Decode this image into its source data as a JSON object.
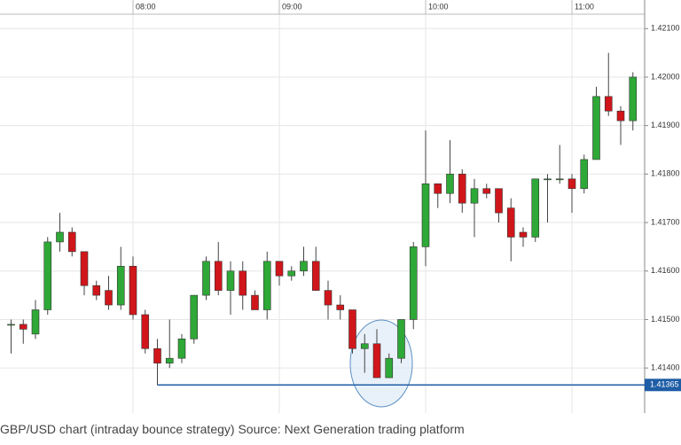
{
  "chart_data": {
    "type": "candlestick",
    "categories": [
      null,
      null,
      null,
      null,
      null,
      null,
      null,
      null,
      null,
      null,
      "08:00",
      null,
      null,
      null,
      null,
      null,
      null,
      null,
      null,
      null,
      null,
      null,
      "09:00",
      null,
      null,
      null,
      null,
      null,
      null,
      null,
      null,
      null,
      null,
      null,
      "10:00",
      null,
      null,
      null,
      null,
      null,
      null,
      null,
      null,
      null,
      null,
      null,
      "11:00",
      null,
      null,
      null,
      null,
      null
    ],
    "open": [
      1.4149,
      1.4149,
      1.4147,
      1.4152,
      1.4166,
      1.4168,
      1.4164,
      1.4157,
      1.4156,
      1.4153,
      1.4161,
      1.4151,
      1.4144,
      1.4141,
      1.4142,
      1.4146,
      1.4155,
      1.4162,
      1.4156,
      1.416,
      1.4155,
      1.4152,
      1.4162,
      1.4159,
      1.416,
      1.4162,
      1.4156,
      1.4153,
      1.4152,
      1.4144,
      1.4145,
      1.4138,
      1.4142,
      1.415,
      1.4165,
      1.4178,
      1.4176,
      1.418,
      1.4174,
      1.4177,
      1.4177,
      1.4173,
      1.4168,
      1.4167,
      1.4179,
      1.4179,
      1.4179,
      1.4177,
      1.4183,
      1.4196,
      1.4193,
      1.4191
    ],
    "high": [
      1.415,
      1.415,
      1.4154,
      1.4167,
      1.4172,
      1.4169,
      1.4164,
      1.4158,
      1.4159,
      1.4165,
      1.4163,
      1.4152,
      1.4146,
      1.415,
      1.4147,
      1.4155,
      1.4163,
      1.4166,
      1.4162,
      1.4162,
      1.4156,
      1.4164,
      1.4162,
      1.4161,
      1.4165,
      1.4165,
      1.4158,
      1.4155,
      1.4152,
      1.4147,
      1.4148,
      1.4143,
      1.415,
      1.4166,
      1.4189,
      1.4178,
      1.4187,
      1.4181,
      1.4179,
      1.4178,
      1.4177,
      1.4175,
      1.4169,
      1.4179,
      1.418,
      1.4186,
      1.418,
      1.4184,
      1.4198,
      1.4205,
      1.4194,
      1.4201
    ],
    "low": [
      1.4143,
      1.4145,
      1.4146,
      1.4151,
      1.4164,
      1.4163,
      1.4155,
      1.4154,
      1.4152,
      1.4152,
      1.415,
      1.4143,
      1.41365,
      1.414,
      1.4141,
      1.4145,
      1.4154,
      1.4155,
      1.4151,
      1.4152,
      1.4152,
      1.415,
      1.4157,
      1.4158,
      1.4159,
      1.4156,
      1.415,
      1.415,
      1.4143,
      1.4139,
      1.4138,
      1.4138,
      1.4141,
      1.4148,
      1.4161,
      1.4173,
      1.4174,
      1.4172,
      1.4167,
      1.4175,
      1.417,
      1.4162,
      1.4165,
      1.4166,
      1.417,
      1.4178,
      1.4172,
      1.4176,
      1.4183,
      1.4192,
      1.4186,
      1.4189
    ],
    "close": [
      1.4149,
      1.4148,
      1.4152,
      1.4166,
      1.4168,
      1.4164,
      1.4157,
      1.4155,
      1.4153,
      1.4161,
      1.4151,
      1.4144,
      1.4141,
      1.4142,
      1.4146,
      1.4155,
      1.4162,
      1.4156,
      1.416,
      1.4155,
      1.4152,
      1.4162,
      1.4159,
      1.416,
      1.4162,
      1.4156,
      1.4153,
      1.4152,
      1.4144,
      1.4145,
      1.4138,
      1.4142,
      1.415,
      1.4165,
      1.4178,
      1.4176,
      1.418,
      1.4174,
      1.4177,
      1.4176,
      1.4172,
      1.4167,
      1.4167,
      1.4179,
      1.4179,
      1.4179,
      1.4177,
      1.4183,
      1.4196,
      1.4193,
      1.4191,
      1.42
    ],
    "up_color": "#2ea836",
    "down_color": "#d0161b",
    "ylim": [
      1.41307,
      1.42159
    ],
    "yticks": [
      {
        "value": 1.414,
        "label": "1.41400"
      },
      {
        "value": 1.415,
        "label": "1.41500"
      },
      {
        "value": 1.416,
        "label": "1.41600"
      },
      {
        "value": 1.417,
        "label": "1.41700"
      },
      {
        "value": 1.418,
        "label": "1.41800"
      },
      {
        "value": 1.419,
        "label": "1.41900"
      },
      {
        "value": 1.42,
        "label": "1.42000"
      },
      {
        "value": 1.421,
        "label": "1.42100"
      }
    ],
    "grid": true,
    "support": {
      "value": 1.41365,
      "label": "1.41365",
      "color": "#1f5da6"
    },
    "caption": "GBP/USD chart (intraday bounce strategy) Source: Next Generation trading platform"
  }
}
